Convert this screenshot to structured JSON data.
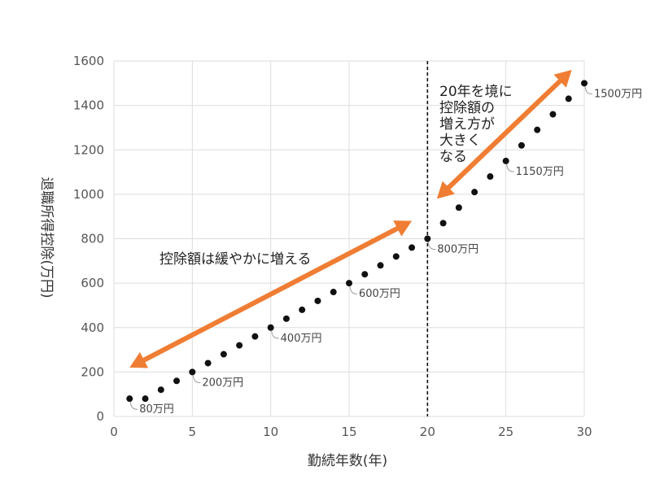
{
  "chart_data": {
    "type": "scatter",
    "title": "",
    "xlabel": "勤続年数(年)",
    "ylabel": "退職所得控除(万円)",
    "xlim": [
      0,
      30
    ],
    "ylim": [
      0,
      1600
    ],
    "xticks": [
      0,
      5,
      10,
      15,
      20,
      25,
      30
    ],
    "yticks": [
      0,
      200,
      400,
      600,
      800,
      1000,
      1200,
      1400,
      1600
    ],
    "grid": true,
    "legend": "none",
    "series": [
      {
        "x": [
          1,
          2,
          3,
          4,
          5,
          6,
          7,
          8,
          9,
          10,
          11,
          12,
          13,
          14,
          15,
          16,
          17,
          18,
          19,
          20,
          21,
          22,
          23,
          24,
          25,
          26,
          27,
          28,
          29,
          30
        ],
        "y": [
          80,
          80,
          120,
          160,
          200,
          240,
          280,
          320,
          360,
          400,
          440,
          480,
          520,
          560,
          600,
          640,
          680,
          720,
          760,
          800,
          870,
          940,
          1010,
          1080,
          1150,
          1220,
          1290,
          1360,
          1430,
          1500
        ]
      }
    ],
    "reference_line": {
      "x": 20,
      "style": "dashed"
    },
    "point_labels": [
      {
        "x": 1,
        "y": 80,
        "text": "80万円"
      },
      {
        "x": 5,
        "y": 200,
        "text": "200万円"
      },
      {
        "x": 10,
        "y": 400,
        "text": "400万円"
      },
      {
        "x": 15,
        "y": 600,
        "text": "600万円"
      },
      {
        "x": 20,
        "y": 800,
        "text": "800万円"
      },
      {
        "x": 25,
        "y": 1150,
        "text": "1150万円"
      },
      {
        "x": 30,
        "y": 1500,
        "text": "1500万円"
      }
    ],
    "annotations": [
      {
        "text_lines": [
          "控除額は緩やかに増える"
        ],
        "arrow_from": [
          1,
          220
        ],
        "arrow_to": [
          19,
          880
        ]
      },
      {
        "text_lines": [
          "20年を境に",
          "控除額の",
          "増え方が",
          "大きく",
          "なる"
        ],
        "arrow_from": [
          20.6,
          980
        ],
        "arrow_to": [
          29.2,
          1560
        ]
      }
    ],
    "colors": {
      "points": "#111111",
      "arrow": "#ef7d33",
      "grid": "#dddddd",
      "ref_line": "#111111"
    }
  }
}
